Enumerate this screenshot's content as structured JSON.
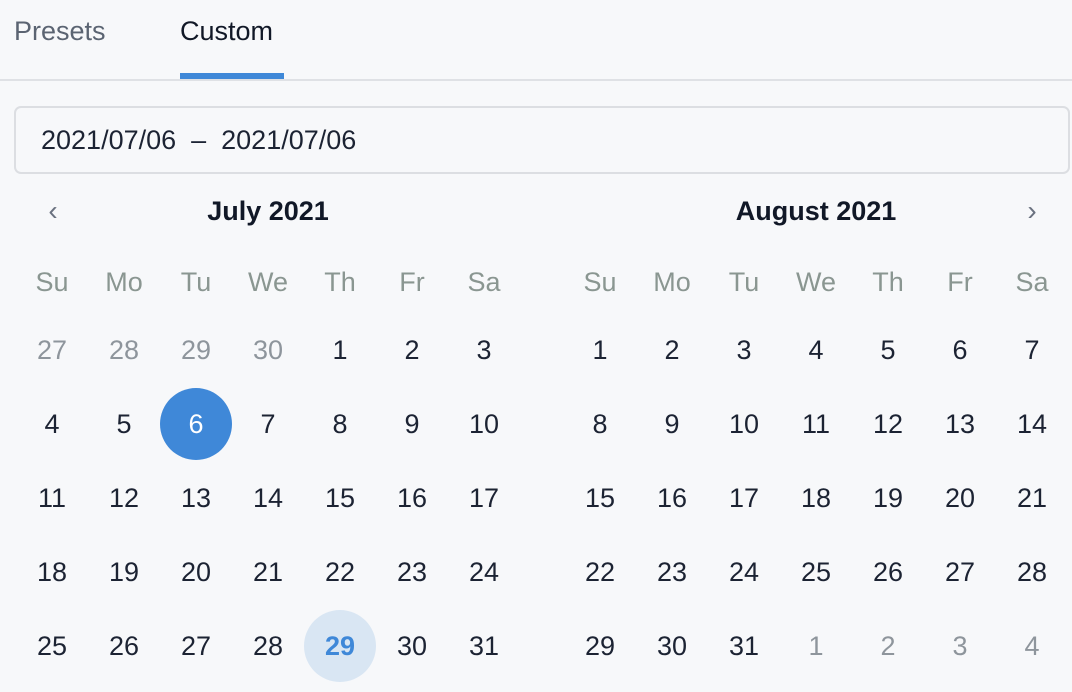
{
  "tabs": [
    {
      "label": "Presets",
      "active": false
    },
    {
      "label": "Custom",
      "active": true
    }
  ],
  "accent": "#3f88d8",
  "range_input": {
    "value": "2021/07/06  –  2021/07/06"
  },
  "nav": {
    "prev_icon": "chevron-left-icon",
    "next_icon": "chevron-right-icon",
    "prev": "‹",
    "next": "›"
  },
  "weekdays": [
    "Su",
    "Mo",
    "Tu",
    "We",
    "Th",
    "Fr",
    "Sa"
  ],
  "months": [
    {
      "title": "July 2021",
      "weeks": [
        [
          {
            "d": "27",
            "m": true
          },
          {
            "d": "28",
            "m": true
          },
          {
            "d": "29",
            "m": true
          },
          {
            "d": "30",
            "m": true
          },
          {
            "d": "1"
          },
          {
            "d": "2"
          },
          {
            "d": "3"
          }
        ],
        [
          {
            "d": "4"
          },
          {
            "d": "5"
          },
          {
            "d": "6",
            "sel": true
          },
          {
            "d": "7"
          },
          {
            "d": "8"
          },
          {
            "d": "9"
          },
          {
            "d": "10"
          }
        ],
        [
          {
            "d": "11"
          },
          {
            "d": "12"
          },
          {
            "d": "13"
          },
          {
            "d": "14"
          },
          {
            "d": "15"
          },
          {
            "d": "16"
          },
          {
            "d": "17"
          }
        ],
        [
          {
            "d": "18"
          },
          {
            "d": "19"
          },
          {
            "d": "20"
          },
          {
            "d": "21"
          },
          {
            "d": "22"
          },
          {
            "d": "23"
          },
          {
            "d": "24"
          }
        ],
        [
          {
            "d": "25"
          },
          {
            "d": "26"
          },
          {
            "d": "27"
          },
          {
            "d": "28"
          },
          {
            "d": "29",
            "today": true
          },
          {
            "d": "30"
          },
          {
            "d": "31"
          }
        ]
      ]
    },
    {
      "title": "August 2021",
      "weeks": [
        [
          {
            "d": "1"
          },
          {
            "d": "2"
          },
          {
            "d": "3"
          },
          {
            "d": "4"
          },
          {
            "d": "5"
          },
          {
            "d": "6"
          },
          {
            "d": "7"
          }
        ],
        [
          {
            "d": "8"
          },
          {
            "d": "9"
          },
          {
            "d": "10"
          },
          {
            "d": "11"
          },
          {
            "d": "12"
          },
          {
            "d": "13"
          },
          {
            "d": "14"
          }
        ],
        [
          {
            "d": "15"
          },
          {
            "d": "16"
          },
          {
            "d": "17"
          },
          {
            "d": "18"
          },
          {
            "d": "19"
          },
          {
            "d": "20"
          },
          {
            "d": "21"
          }
        ],
        [
          {
            "d": "22"
          },
          {
            "d": "23"
          },
          {
            "d": "24"
          },
          {
            "d": "25"
          },
          {
            "d": "26"
          },
          {
            "d": "27"
          },
          {
            "d": "28"
          }
        ],
        [
          {
            "d": "29"
          },
          {
            "d": "30"
          },
          {
            "d": "31"
          },
          {
            "d": "1",
            "m": true
          },
          {
            "d": "2",
            "m": true
          },
          {
            "d": "3",
            "m": true
          },
          {
            "d": "4",
            "m": true
          }
        ]
      ]
    }
  ]
}
